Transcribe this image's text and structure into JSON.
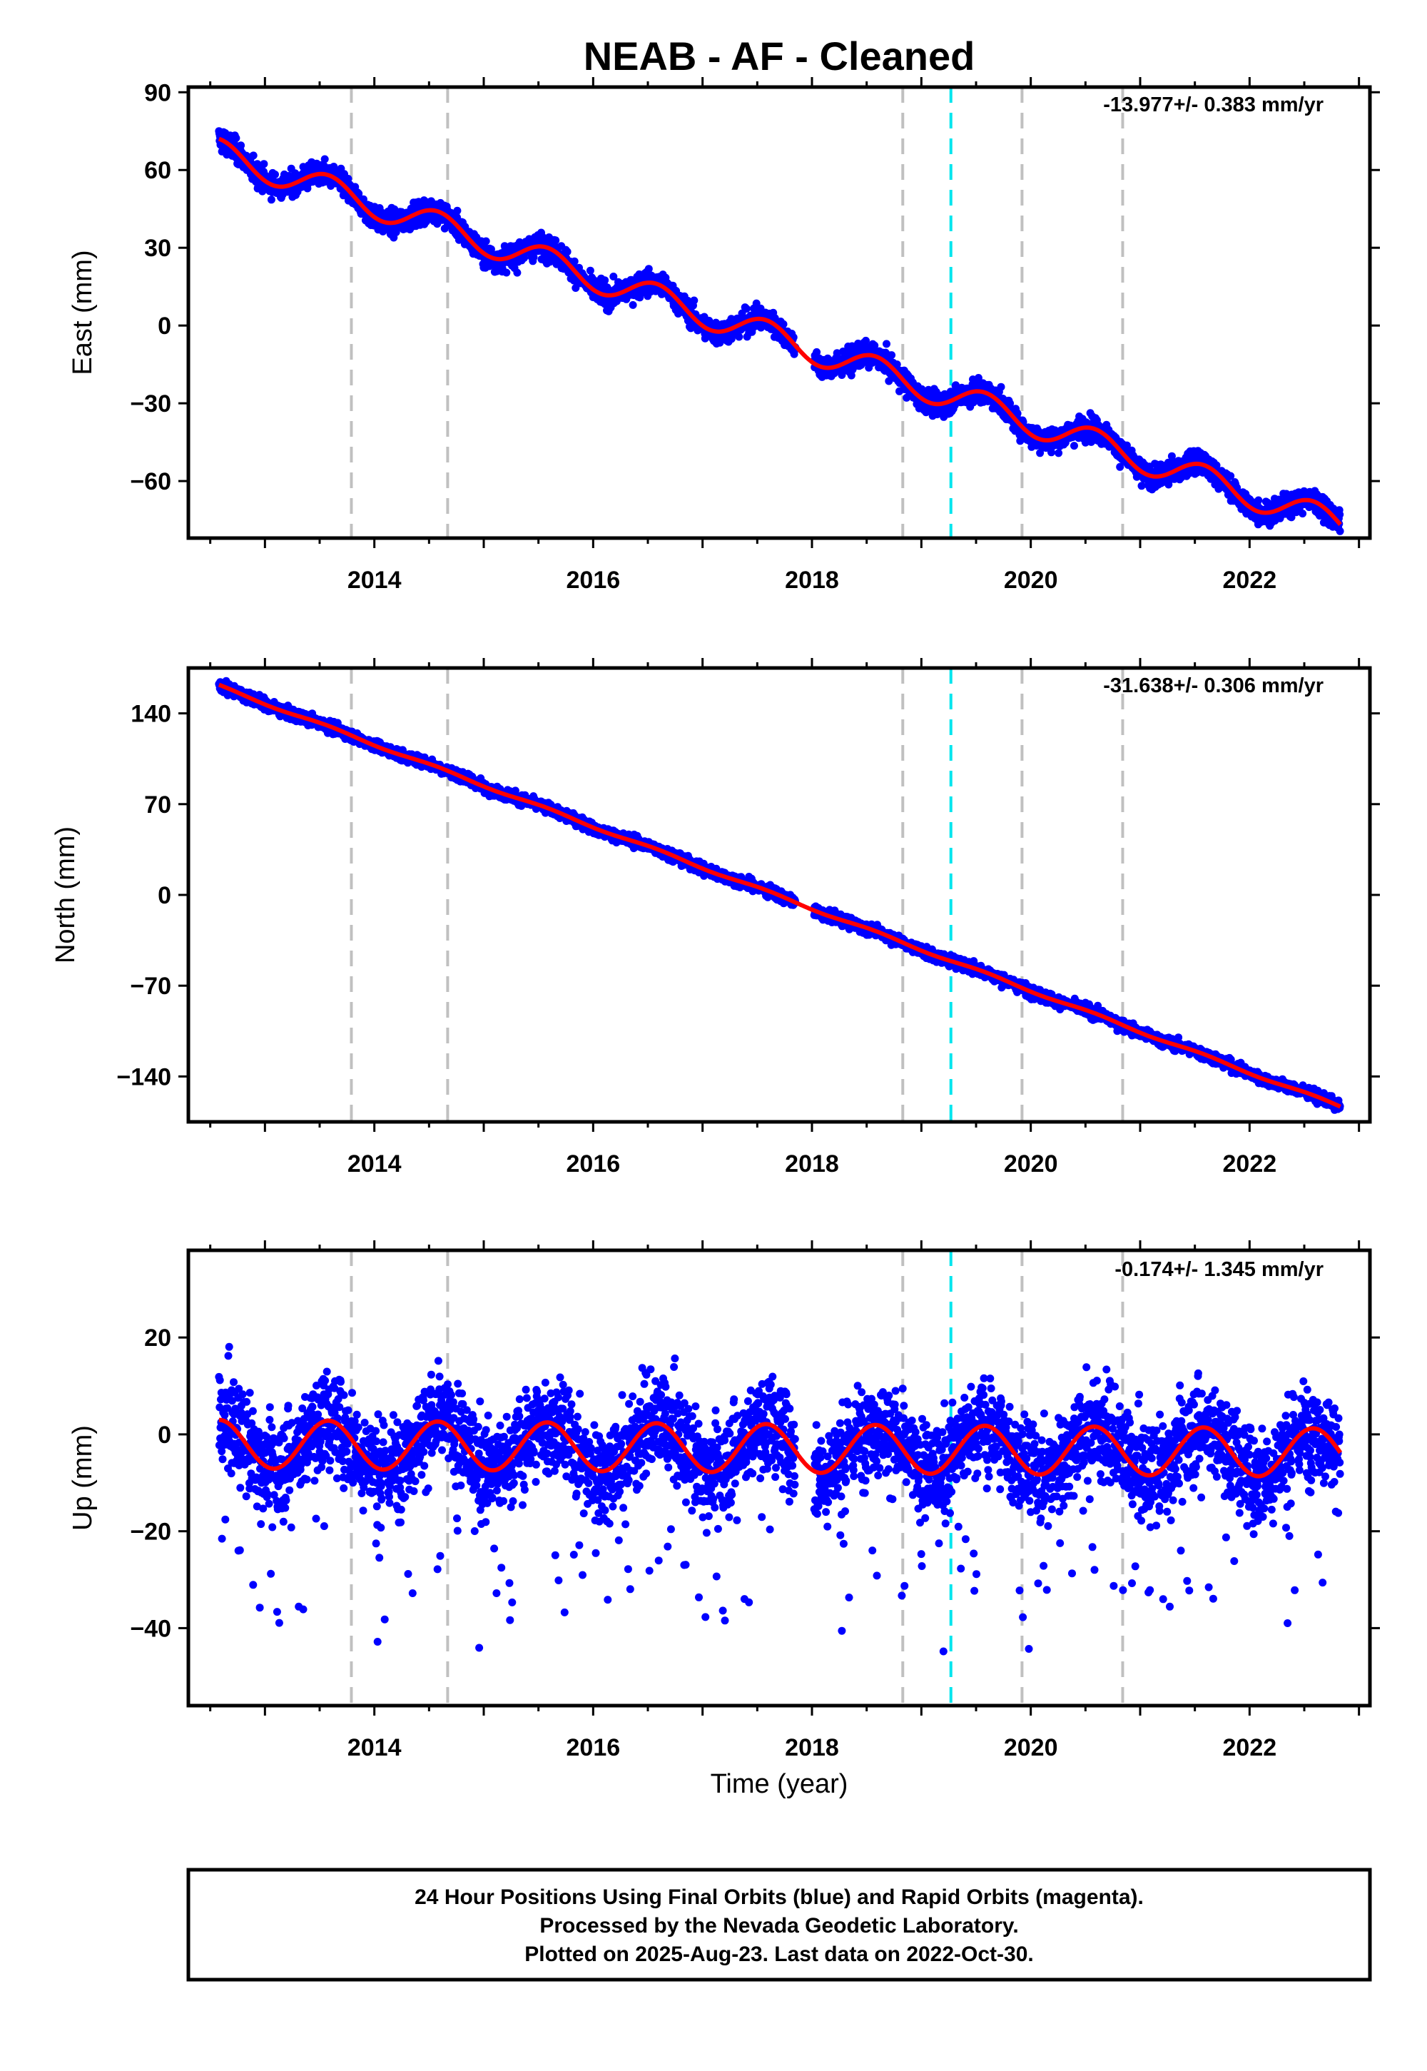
{
  "title": "NEAB  - AF - Cleaned",
  "xlabel": "Time (year)",
  "x_ticks": [
    2014,
    2016,
    2018,
    2020,
    2022
  ],
  "x_range": [
    2012.3,
    2023.1
  ],
  "vlines_gray": [
    2013.79,
    2014.67,
    2018.83,
    2019.92,
    2020.84
  ],
  "vline_cyan": 2019.27,
  "colors": {
    "points": "#0000ff",
    "fit": "#ff0000",
    "gray_line": "#c0c0c0",
    "cyan_line": "#00e5ee"
  },
  "chart_data": [
    {
      "type": "scatter",
      "ylabel": "East (mm)",
      "rate_label": "-13.977+/- 0.383 mm/yr",
      "ylim": [
        -82,
        92
      ],
      "y_ticks": [
        90,
        60,
        30,
        0,
        -30,
        -60
      ],
      "fit": {
        "start_year": 2012.58,
        "end_year": 2022.83,
        "start_value": 72.0,
        "rate": -13.977,
        "seasonal_amplitude": 5.5,
        "seasonal_phase": 0.0
      },
      "scatter_sigma": 3.2,
      "series": [
        {
          "type": "line",
          "color": "#ff0000",
          "x": [
            2012.58,
            2013.0,
            2013.5,
            2014.0,
            2014.5,
            2015.0,
            2015.5,
            2016.0,
            2016.5,
            2017.0,
            2017.5,
            2018.0,
            2018.5,
            2019.0,
            2019.5,
            2020.0,
            2020.5,
            2021.0,
            2021.5,
            2022.0,
            2022.5,
            2022.83
          ],
          "y": [
            72,
            63,
            59,
            50,
            45,
            36,
            31,
            21,
            17,
            7,
            3,
            -10,
            -12,
            -22,
            -26,
            -36,
            -39,
            -50,
            -53,
            -64,
            -66,
            -77
          ]
        }
      ]
    },
    {
      "type": "scatter",
      "ylabel": "North (mm)",
      "rate_label": "-31.638+/- 0.306 mm/yr",
      "ylim": [
        -175,
        175
      ],
      "y_ticks": [
        140,
        70,
        0,
        -70,
        -140
      ],
      "fit": {
        "start_year": 2012.58,
        "end_year": 2022.83,
        "start_value": 162.0,
        "rate": -31.638,
        "seasonal_amplitude": 1.0,
        "seasonal_phase": 0.0
      },
      "scatter_sigma": 3.0,
      "series": [
        {
          "type": "line",
          "color": "#ff0000",
          "x": [
            2012.58,
            2014.0,
            2016.0,
            2018.0,
            2020.0,
            2022.0,
            2022.83
          ],
          "y": [
            162,
            117,
            54,
            -11,
            -74,
            -137,
            -162
          ]
        }
      ]
    },
    {
      "type": "scatter",
      "ylabel": "Up (mm)",
      "rate_label": "-0.174+/- 1.345 mm/yr",
      "ylim": [
        -56,
        38
      ],
      "y_ticks": [
        20,
        0,
        -20,
        -40
      ],
      "fit": {
        "start_year": 2012.58,
        "end_year": 2022.83,
        "start_value": 3.0,
        "rate": -0.174,
        "seasonal_amplitude": 5.0,
        "seasonal_phase": 0.0
      },
      "scatter_sigma": 7.0,
      "series": [
        {
          "type": "line",
          "color": "#ff0000",
          "x": [
            2012.58,
            2012.8,
            2013.1,
            2013.6,
            2014.1,
            2014.6,
            2015.1,
            2015.6,
            2016.1,
            2016.6,
            2017.1,
            2017.6,
            2018.1,
            2018.6,
            2019.1,
            2019.6,
            2020.1,
            2020.6,
            2021.1,
            2021.6,
            2022.1,
            2022.6,
            2022.83
          ],
          "y": [
            7,
            7,
            -2,
            7,
            -3,
            6,
            -4,
            5,
            -4,
            5,
            -4,
            5,
            -4,
            5,
            -5,
            1,
            -8,
            2,
            -9,
            1,
            -9,
            0,
            -6
          ]
        }
      ]
    }
  ],
  "footer": {
    "line1": "24 Hour Positions Using Final Orbits (blue) and Rapid Orbits (magenta).",
    "line2": "Processed by the Nevada Geodetic Laboratory.",
    "line3": "Plotted on 2025-Aug-23. Last data on 2022-Oct-30."
  }
}
